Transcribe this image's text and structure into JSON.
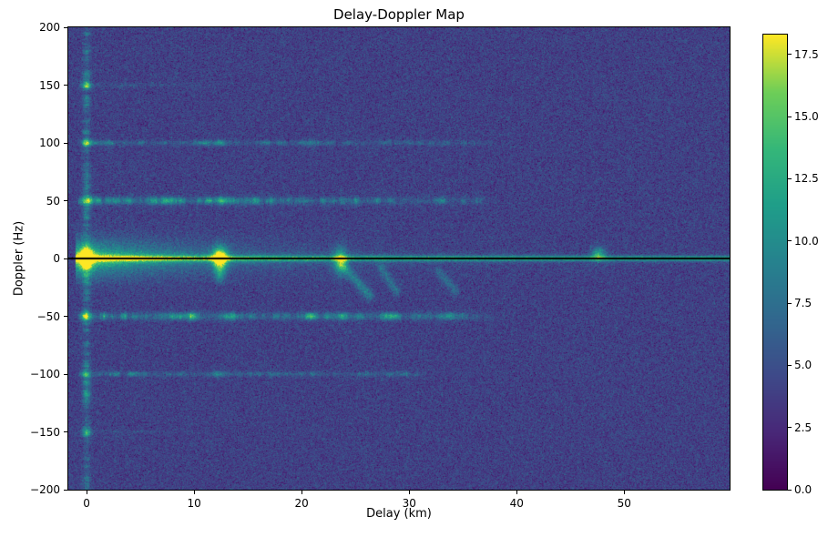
{
  "figure": {
    "background": "#ffffff"
  },
  "chart_data": {
    "type": "heatmap",
    "title": "Delay-Doppler Map",
    "xlabel": "Delay (km)",
    "ylabel": "Doppler (Hz)",
    "xlim": [
      -1.7,
      59.8
    ],
    "ylim": [
      -200,
      200
    ],
    "x_ticks": [
      {
        "value": 0,
        "label": "0"
      },
      {
        "value": 10,
        "label": "10"
      },
      {
        "value": 20,
        "label": "20"
      },
      {
        "value": 30,
        "label": "30"
      },
      {
        "value": 40,
        "label": "40"
      },
      {
        "value": 50,
        "label": "50"
      }
    ],
    "y_ticks": [
      {
        "value": 200,
        "label": "200"
      },
      {
        "value": 150,
        "label": "150"
      },
      {
        "value": 100,
        "label": "100"
      },
      {
        "value": 50,
        "label": "50"
      },
      {
        "value": 0,
        "label": "0"
      },
      {
        "value": -50,
        "label": "−50"
      },
      {
        "value": -100,
        "label": "−100"
      },
      {
        "value": -150,
        "label": "−150"
      },
      {
        "value": -200,
        "label": "−200"
      }
    ],
    "colormap": "viridis",
    "grid": false,
    "colorbar": {
      "vmin": 0,
      "vmax": 18.3,
      "ticks": [
        {
          "value": 0.0,
          "label": "0.0"
        },
        {
          "value": 2.5,
          "label": "2.5"
        },
        {
          "value": 5.0,
          "label": "5.0"
        },
        {
          "value": 7.5,
          "label": "7.5"
        },
        {
          "value": 10.0,
          "label": "10.0"
        },
        {
          "value": 12.5,
          "label": "12.5"
        },
        {
          "value": 15.0,
          "label": "15.0"
        },
        {
          "value": 17.5,
          "label": "17.5"
        }
      ]
    },
    "zero_doppler_line": {
      "doppler": 0,
      "color": "#000000"
    },
    "noise": {
      "mean": 4.0,
      "std": 1.15,
      "seed": 7
    },
    "ridge": {
      "line_amp": 8.5,
      "line_width": 1.6,
      "glow_amp": 9,
      "glow_decay_km": 9,
      "glow_width": 11,
      "mid_amp": 5,
      "mid_decay_km": 22,
      "mid_width": 3.5
    },
    "doppler_sidelines": [
      {
        "doppler": 50,
        "peak": 10,
        "width_hz": 2.2,
        "extent_km": 36,
        "decay_km": 25
      },
      {
        "doppler": -50,
        "peak": 10,
        "width_hz": 2.2,
        "extent_km": 36,
        "decay_km": 25
      },
      {
        "doppler": 100,
        "peak": 6.5,
        "width_hz": 1.5,
        "extent_km": 36,
        "decay_km": 30
      },
      {
        "doppler": -100,
        "peak": 6.5,
        "width_hz": 1.5,
        "extent_km": 30,
        "decay_km": 30
      },
      {
        "doppler": 150,
        "peak": 3,
        "width_hz": 1.3,
        "extent_km": 10,
        "decay_km": 6
      },
      {
        "doppler": -150,
        "peak": 2.5,
        "width_hz": 1.3,
        "extent_km": 8,
        "decay_km": 6
      }
    ],
    "zero_delay_column": {
      "delay": 0,
      "peak": 6.5,
      "width_km": 0.25
    },
    "targets": [
      {
        "delay": 0,
        "doppler": 0,
        "amp": 14,
        "sx": 0.4,
        "sy": 7
      },
      {
        "delay": 12.4,
        "doppler": 0,
        "amp": 15,
        "sx": 0.5,
        "sy": 7
      },
      {
        "delay": 12.4,
        "doppler": -14,
        "amp": 5,
        "sx": 0.3,
        "sy": 5
      },
      {
        "delay": 23.6,
        "doppler": -2,
        "amp": 9,
        "sx": 0.45,
        "sy": 8
      },
      {
        "delay": 47.6,
        "doppler": 4,
        "amp": 8,
        "sx": 0.45,
        "sy": 4
      },
      {
        "delay": 0,
        "doppler": 50,
        "amp": 9,
        "sx": 0.35,
        "sy": 3
      },
      {
        "delay": 0,
        "doppler": -50,
        "amp": 9,
        "sx": 0.35,
        "sy": 3
      },
      {
        "delay": 0,
        "doppler": 100,
        "amp": 7,
        "sx": 0.3,
        "sy": 2.5
      },
      {
        "delay": 0,
        "doppler": -100,
        "amp": 6,
        "sx": 0.3,
        "sy": 2.5
      },
      {
        "delay": 0,
        "doppler": 150,
        "amp": 6,
        "sx": 0.3,
        "sy": 2.5
      },
      {
        "delay": 0,
        "doppler": -150,
        "amp": 5,
        "sx": 0.3,
        "sy": 2.5
      },
      {
        "delay": 7.5,
        "doppler": 50,
        "amp": 4.5,
        "sx": 0.7,
        "sy": 2.4
      },
      {
        "delay": 12.4,
        "doppler": 50,
        "amp": 4.5,
        "sx": 0.6,
        "sy": 2.4
      },
      {
        "delay": 9.5,
        "doppler": -50,
        "amp": 4.5,
        "sx": 0.7,
        "sy": 2.4
      },
      {
        "delay": 13.2,
        "doppler": -50,
        "amp": 5,
        "sx": 0.6,
        "sy": 2.4
      },
      {
        "delay": 20.8,
        "doppler": -50,
        "amp": 4,
        "sx": 0.6,
        "sy": 2.2
      },
      {
        "delay": 23.6,
        "doppler": -50,
        "amp": 4,
        "sx": 0.6,
        "sy": 2.2
      },
      {
        "delay": 28.2,
        "doppler": -50,
        "amp": 3.5,
        "sx": 0.6,
        "sy": 2.2
      },
      {
        "delay": 33.5,
        "doppler": -50,
        "amp": 3.2,
        "sx": 0.6,
        "sy": 2.2
      },
      {
        "delay": 12.4,
        "doppler": 100,
        "amp": 3.5,
        "sx": 0.5,
        "sy": 2
      },
      {
        "delay": 20.8,
        "doppler": 100,
        "amp": 3,
        "sx": 0.5,
        "sy": 2
      },
      {
        "delay": 12.4,
        "doppler": -100,
        "amp": 3.2,
        "sx": 0.5,
        "sy": 2
      }
    ],
    "streaks": [
      {
        "x0": 23.8,
        "y0": -6,
        "x1": 26.3,
        "y1": -32,
        "amp": 4.5,
        "width": 0.3
      },
      {
        "x0": 27.4,
        "y0": -8,
        "x1": 28.8,
        "y1": -28,
        "amp": 3.5,
        "width": 0.28
      },
      {
        "x0": 32.8,
        "y0": -12,
        "x1": 34.3,
        "y1": -28,
        "amp": 3,
        "width": 0.28
      }
    ]
  }
}
